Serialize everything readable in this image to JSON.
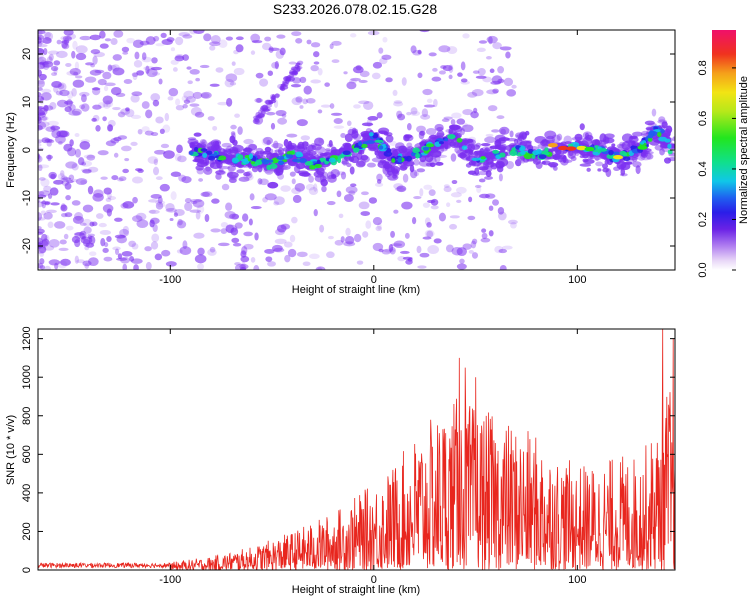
{
  "title": "S233.2026.078.02.15.G28",
  "colors": {
    "snr_line": "#e8261e",
    "spectrogram_base": "#7b2ff0",
    "axis": "#000000"
  },
  "chart_data": [
    {
      "type": "heatmap",
      "name": "spectrogram",
      "xlabel": "Height of straight line (km)",
      "ylabel": "Frequency (Hz)",
      "xlim": [
        -165,
        148
      ],
      "ylim": [
        -25,
        25
      ],
      "xticks": [
        -100,
        0,
        100
      ],
      "xtick_labels": [
        "-100",
        "0",
        "100"
      ],
      "yticks": [
        -20,
        -10,
        0,
        10,
        20
      ],
      "ytick_labels": [
        "-20",
        "-10",
        "0",
        "10",
        "20"
      ],
      "ridge": {
        "x": [
          -90,
          -80,
          -70,
          -60,
          -50,
          -40,
          -30,
          -20,
          -10,
          -5,
          0,
          10,
          20,
          30,
          40,
          50,
          60,
          70,
          80,
          90,
          95,
          100,
          110,
          118,
          125,
          132,
          138,
          142,
          145,
          148
        ],
        "y": [
          0,
          -1,
          -2,
          -2,
          -3,
          -1,
          -3,
          -2,
          0,
          1,
          3,
          -2,
          -1,
          1,
          3,
          -2,
          -1,
          0,
          -1,
          0,
          0.3,
          0.3,
          0,
          -1.5,
          -1,
          1,
          4,
          3,
          1,
          -2
        ]
      },
      "diagonal_feature": {
        "x": [
          -58,
          -36
        ],
        "y": [
          6,
          18
        ]
      },
      "colorbar": {
        "label": "Normalized spectral amplitude",
        "range": [
          0,
          0.95
        ],
        "ticks": [
          "0.0",
          "0.2",
          "0.4",
          "0.6",
          "0.8"
        ]
      }
    },
    {
      "type": "line",
      "name": "snr",
      "xlabel": "Height of straight line (km)",
      "ylabel": "SNR (10 * v/v)",
      "xlim": [
        -165,
        148
      ],
      "ylim": [
        0,
        1250
      ],
      "xticks": [
        -100,
        0,
        100
      ],
      "xtick_labels": [
        "-100",
        "0",
        "100"
      ],
      "yticks": [
        0,
        200,
        400,
        600,
        800,
        1000,
        1200
      ],
      "ytick_labels": [
        "0",
        "200",
        "400",
        "600",
        "800",
        "1000",
        "1200"
      ],
      "envelope": {
        "x": [
          -165,
          -120,
          -100,
          -80,
          -60,
          -40,
          -20,
          0,
          10,
          20,
          30,
          40,
          50,
          60,
          70,
          80,
          90,
          100,
          110,
          120,
          130,
          140,
          145,
          148
        ],
        "y": [
          30,
          30,
          40,
          70,
          120,
          200,
          300,
          450,
          550,
          700,
          800,
          900,
          850,
          800,
          750,
          700,
          600,
          550,
          550,
          600,
          600,
          750,
          1000,
          800
        ]
      },
      "peaks": [
        {
          "x": 42,
          "y": 1100
        },
        {
          "x": 45,
          "y": 1050
        },
        {
          "x": 50,
          "y": 1000
        },
        {
          "x": 142,
          "y": 1250
        },
        {
          "x": 147,
          "y": 1200
        }
      ]
    }
  ]
}
